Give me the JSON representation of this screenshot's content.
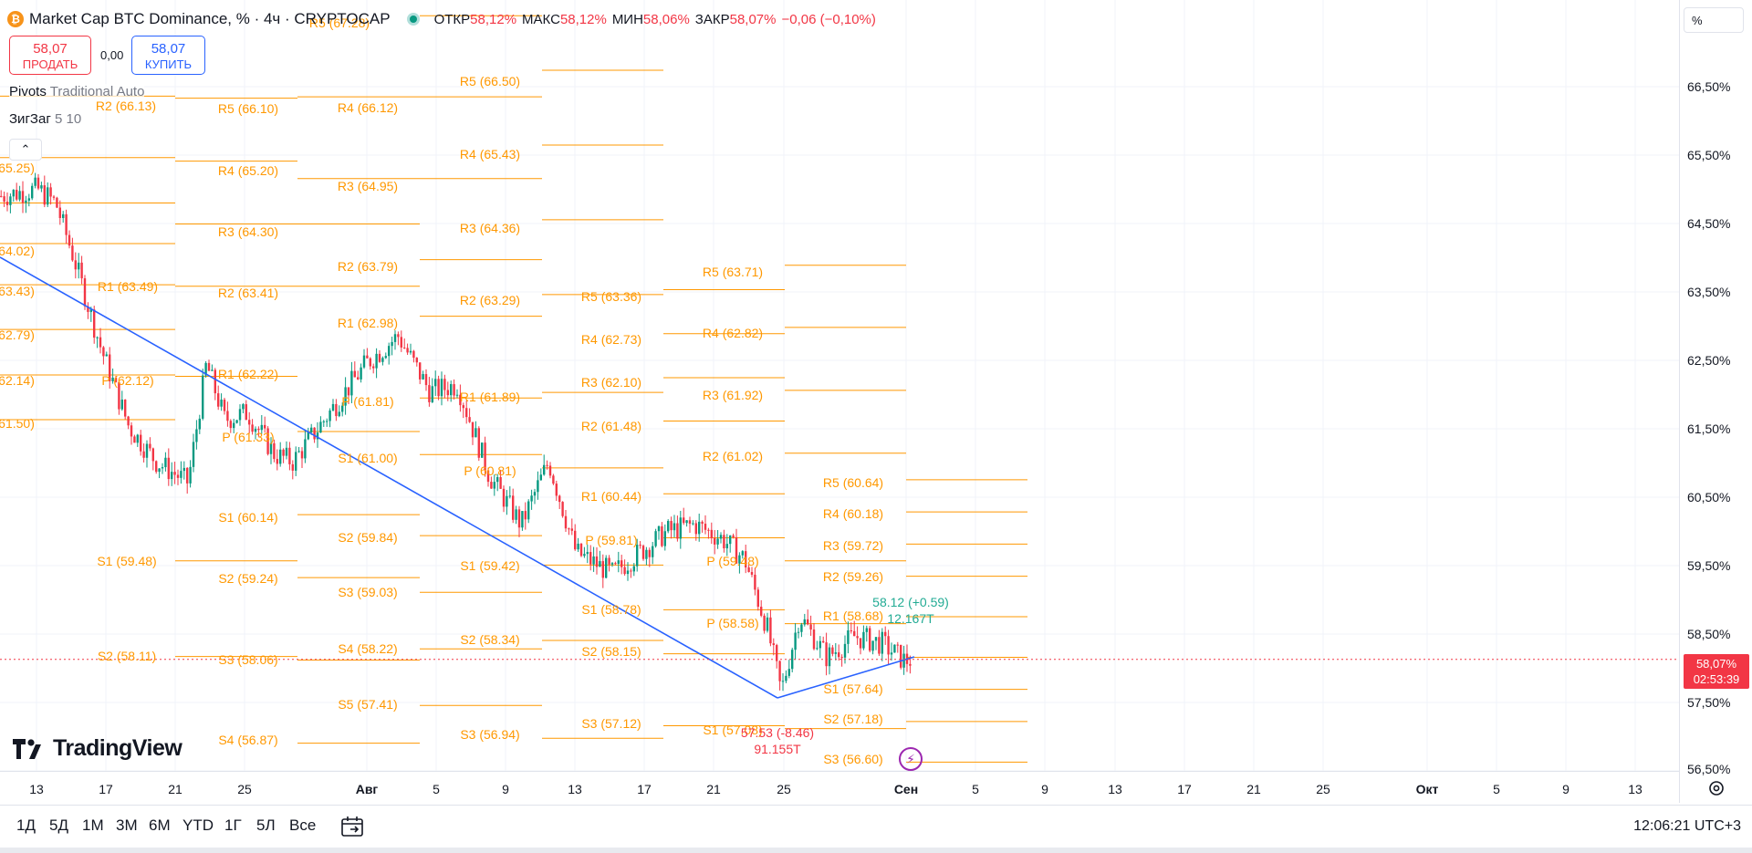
{
  "symbol": {
    "icon": "bitcoin-icon",
    "title": "Market Cap BTC Dominance, % · 4ч · CRYPTOCAP",
    "ohlc": [
      {
        "k": "ОТКР",
        "v": "58,12%"
      },
      {
        "k": "МАКС",
        "v": "58,12%"
      },
      {
        "k": "МИН",
        "v": "58,06%"
      },
      {
        "k": "ЗАКР",
        "v": "58,07%"
      }
    ],
    "change": "−0,06 (−0,10%)"
  },
  "trade": {
    "sell_price": "58,07",
    "sell_label": "ПРОДАТЬ",
    "spread": "0,00",
    "buy_price": "58,07",
    "buy_label": "КУПИТЬ"
  },
  "indicators": [
    {
      "name": "Pivots",
      "args": " Traditional Auto"
    },
    {
      "name": "ЗигЗаг",
      "args": " 5 10"
    }
  ],
  "price_scale": {
    "mode": "%",
    "labels": [
      "66,50%",
      "65,50%",
      "64,50%",
      "63,50%",
      "62,50%",
      "61,50%",
      "60,50%",
      "59,50%",
      "58,50%",
      "57,50%",
      "56,50%"
    ],
    "last_price": "58,07%",
    "countdown": "02:53:39"
  },
  "time_axis": {
    "labels": [
      "13",
      "17",
      "21",
      "25",
      "Авг",
      "5",
      "9",
      "13",
      "17",
      "21",
      "25",
      "Сен",
      "5",
      "9",
      "13",
      "17",
      "21",
      "25",
      "Окт",
      "5",
      "9",
      "13"
    ],
    "bold": [
      "Авг",
      "Сен",
      "Окт"
    ]
  },
  "ranges": [
    "1Д",
    "5Д",
    "1М",
    "3М",
    "6М",
    "YTD",
    "1Г",
    "5Л",
    "Все"
  ],
  "clock": "12:06:21 UTC+3",
  "logo": "TradingView",
  "pivot_labels": [
    {
      "t": "R5 (67.28)"
    },
    {
      "t": "R2 (66.13)"
    },
    {
      "t": "R5 (66.10)"
    },
    {
      "t": "R4 (66.12)"
    },
    {
      "t": "R5 (66.50)"
    },
    {
      "t": "65.25)"
    },
    {
      "t": "R4 (65.43)"
    },
    {
      "t": "R4 (65.20)"
    },
    {
      "t": "R3 (64.95)"
    },
    {
      "t": "R3 (64.30)"
    },
    {
      "t": "R3 (64.36)"
    },
    {
      "t": "64.02)"
    },
    {
      "t": "R2 (63.79)"
    },
    {
      "t": "R5 (63.71)"
    },
    {
      "t": "63.43)"
    },
    {
      "t": "R1 (63.49)"
    },
    {
      "t": "R2 (63.41)"
    },
    {
      "t": "R2 (63.29)"
    },
    {
      "t": "R5 (63.36)"
    },
    {
      "t": "R1 (62.98)"
    },
    {
      "t": "R4 (62.82)"
    },
    {
      "t": "62.79)"
    },
    {
      "t": "R4 (62.73)"
    },
    {
      "t": "R1 (62.22)"
    },
    {
      "t": "62.14)"
    },
    {
      "t": "P (62.12)"
    },
    {
      "t": "R3 (62.10)"
    },
    {
      "t": "R3 (61.92)"
    },
    {
      "t": "R1 (61.89)"
    },
    {
      "t": "P (61.81)"
    },
    {
      "t": "61.50)"
    },
    {
      "t": "R2 (61.48)"
    },
    {
      "t": "P (61.33)"
    },
    {
      "t": "R2 (61.02)"
    },
    {
      "t": "S1 (61.00)"
    },
    {
      "t": "P (60.81)"
    },
    {
      "t": "R5 (60.64)"
    },
    {
      "t": "R1 (60.44)"
    },
    {
      "t": "R4 (60.18)"
    },
    {
      "t": "S1 (60.14)"
    },
    {
      "t": "P (59.81)"
    },
    {
      "t": "S2 (59.84)"
    },
    {
      "t": "R3 (59.72)"
    },
    {
      "t": "S1 (59.48)"
    },
    {
      "t": "P (59.48)"
    },
    {
      "t": "S1 (59.42)"
    },
    {
      "t": "R2 (59.26)"
    },
    {
      "t": "S2 (59.24)"
    },
    {
      "t": "S3 (59.03)"
    },
    {
      "t": "S1 (58.78)"
    },
    {
      "t": "R1 (58.68)"
    },
    {
      "t": "P (58.58)"
    },
    {
      "t": "S4 (58.22)"
    },
    {
      "t": "S2 (58.34)"
    },
    {
      "t": "S2 (58.15)"
    },
    {
      "t": "S2 (58.11)"
    },
    {
      "t": "S3 (58.06)"
    },
    {
      "t": "S1 (57.64)"
    },
    {
      "t": "S5 (57.41)"
    },
    {
      "t": "S2 (57.18)"
    },
    {
      "t": "S3 (57.12)"
    },
    {
      "t": "S1 (57.08)"
    },
    {
      "t": "S3 (56.94)"
    },
    {
      "t": "S4 (56.87)"
    },
    {
      "t": "S3 (56.60)"
    }
  ],
  "zigzag_labels": [
    {
      "t": "58.12 (+0.59)",
      "color": "#22ab94"
    },
    {
      "t": "12.167T",
      "color": "#22ab94"
    },
    {
      "t": "57.53 (-8.46)",
      "color": "#f23645"
    },
    {
      "t": "91.155T",
      "color": "#f23645"
    }
  ],
  "colors": {
    "pivot": "#ff9800",
    "trendline": "#2962ff",
    "candle_up": "#089981",
    "candle_down": "#f23645",
    "last_price": "#f23645"
  },
  "chart_data": {
    "type": "candlestick",
    "price_range": [
      56.5,
      66.9
    ],
    "candles": "4h candles, BTC dominance from ~64.8% mid-July declining to ~57.6% late August, closing at 58.07%",
    "series": [
      {
        "name": "BTC Dominance",
        "x": [
          "Jul 12",
          "Jul 13",
          "Jul 15",
          "Jul 17",
          "Jul 19",
          "Jul 21",
          "Jul 23",
          "Jul 24",
          "Jul 26",
          "Jul 28",
          "Jul 30",
          "Aug 1",
          "Aug 3",
          "Aug 5",
          "Aug 7",
          "Aug 9",
          "Aug 11",
          "Aug 13",
          "Aug 15",
          "Aug 17",
          "Aug 20",
          "Aug 22",
          "Aug 24",
          "Aug 25",
          "Aug 27",
          "Aug 29",
          "Aug 31",
          "Sep 1"
        ],
        "values": [
          64.6,
          64.8,
          64.5,
          63.3,
          61.7,
          60.5,
          61.3,
          62.1,
          61.6,
          61.1,
          61.6,
          62.4,
          61.8,
          62.0,
          61.3,
          59.8,
          60.9,
          59.4,
          59.4,
          59.6,
          60.0,
          58.6,
          57.6,
          58.5,
          58.2,
          58.3,
          58.0,
          58.07
        ]
      }
    ]
  }
}
